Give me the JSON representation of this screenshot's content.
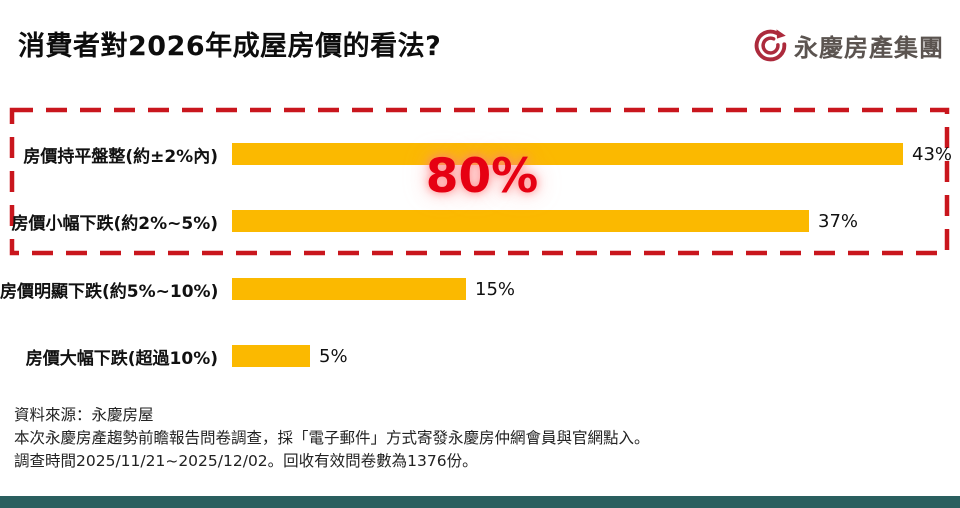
{
  "page": {
    "title": "消費者對2026年成屋房價的看法?",
    "logo": {
      "brand": "永慶房產集團",
      "icon": "yungching-swirl-icon",
      "icon_color": "#ac2a3c",
      "text_color": "#5b5450"
    }
  },
  "chart_data": {
    "type": "bar",
    "orientation": "horizontal",
    "title": "消費者對2026年成屋房價的看法?",
    "categories": [
      "房價持平盤整(約±2%內)",
      "房價小幅下跌(約2%~5%)",
      "房價明顯下跌(約5%~10%)",
      "房價大幅下跌(超過10%)"
    ],
    "values": [
      43,
      37,
      15,
      5
    ],
    "value_labels": [
      "43%",
      "37%",
      "15%",
      "5%"
    ],
    "bar_color": "#fbb900",
    "xlim": [
      0,
      45
    ],
    "grid": false,
    "highlight": {
      "label": "80%",
      "covers": [
        "房價持平盤整(約±2%內)",
        "房價小幅下跌(約2%~5%)"
      ],
      "text_color": "#e60012",
      "box_color": "#c9161d",
      "box_style": "dashed"
    }
  },
  "footer": {
    "lines": [
      "資料來源：永慶房屋",
      "本次永慶房產趨勢前瞻報告問卷調查，採「電子郵件」方式寄發永慶房仲網會員與官網點入。",
      "調查時間2025/11/21~2025/12/02。回收有效問卷數為1376份。"
    ],
    "accent_bar_color": "#2a5f5f"
  }
}
